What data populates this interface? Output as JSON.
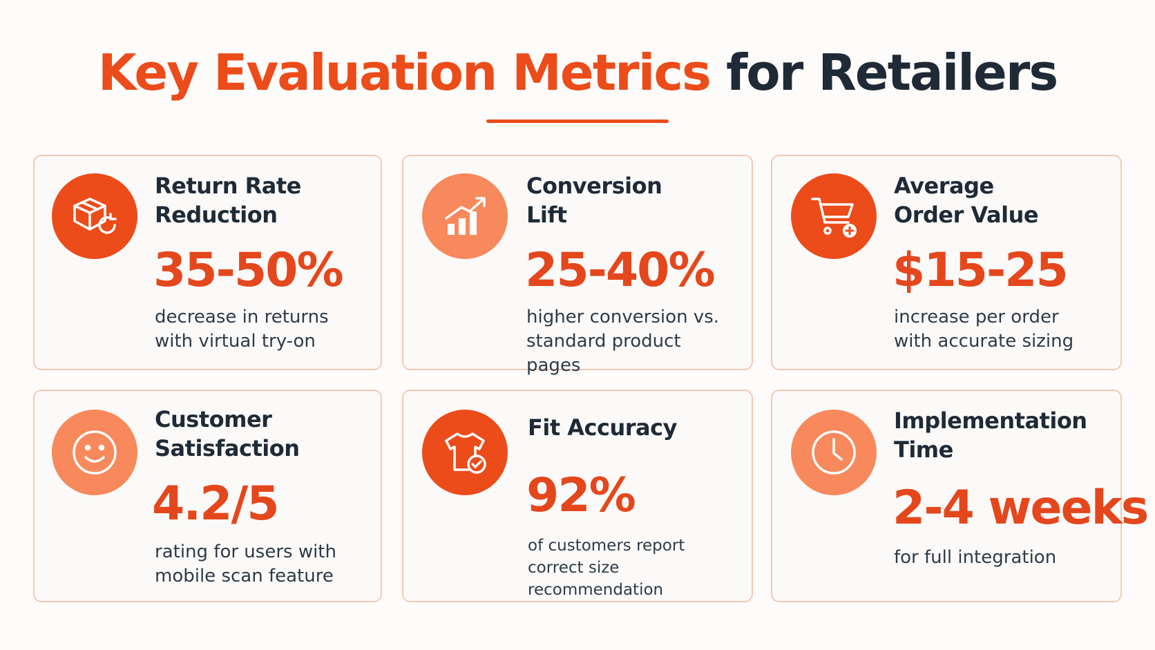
{
  "header": {
    "title_accent": "Key Evaluation Metrics",
    "title_rest": "for Retailers"
  },
  "colors": {
    "accent": "#ec4b1a",
    "accent_soft": "#f7895c",
    "dark_text": "#1f2a36",
    "card_border": "#f6c7b3"
  },
  "cards": [
    {
      "icon": "box-return-icon",
      "label_line1": "Return Rate",
      "label_line2": "Reduction",
      "value": "35-50%",
      "desc_line1": "decrease in returns",
      "desc_line2": "with virtual try-on"
    },
    {
      "icon": "bar-chart-up-icon",
      "label_line1": "Conversion",
      "label_line2": "Lift",
      "value": "25-40%",
      "desc_line1": "higher conversion vs.",
      "desc_line2": "standard product pages"
    },
    {
      "icon": "cart-plus-icon",
      "label_line1": "Average",
      "label_line2": "Order Value",
      "value": "$15-25",
      "desc_line1": "increase per order",
      "desc_line2": "with accurate sizing"
    },
    {
      "icon": "smiley-icon",
      "label_line1": "Customer",
      "label_line2": "Satisfaction",
      "value": "4.2/5",
      "desc_line1": "rating for users with",
      "desc_line2": "mobile scan feature"
    },
    {
      "icon": "shirt-check-icon",
      "label_line1": "Fit Accuracy",
      "value": "92%",
      "desc_line1": "of customers report",
      "desc_line2": "correct size recommendation"
    },
    {
      "icon": "clock-icon",
      "label_line1": "Implementation",
      "label_line2": "Time",
      "value": "2-4 weeks",
      "desc_line1": "for full integration"
    }
  ]
}
